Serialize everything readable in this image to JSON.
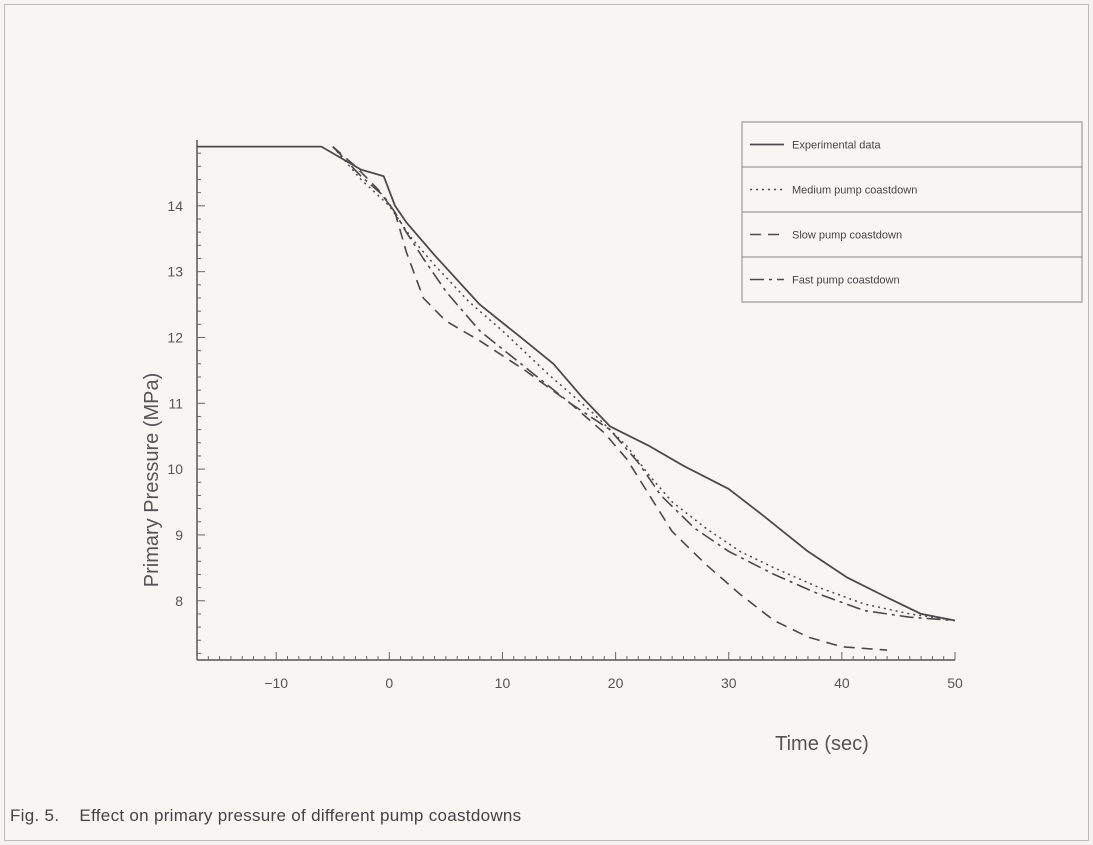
{
  "caption": "Fig. 5.    Effect on primary pressure of different pump coastdowns",
  "chart_data": {
    "type": "line",
    "xlabel": "Time (sec)",
    "ylabel": "Primary Pressure (MPa)",
    "xlim": [
      -17,
      50
    ],
    "ylim": [
      7.1,
      15.0
    ],
    "xticks": [
      -10,
      0,
      10,
      20,
      30,
      40,
      50
    ],
    "yticks": [
      8,
      9,
      10,
      11,
      12,
      13,
      14
    ],
    "legend_position": "top-right",
    "series": [
      {
        "name": "Experimental data",
        "style": "solid",
        "x": [
          -17,
          -6,
          -4.5,
          -2.5,
          -0.5,
          0.5,
          1.5,
          4,
          8,
          12,
          14.5,
          17,
          19.5,
          23,
          26,
          30,
          33,
          37,
          40.5,
          44,
          47,
          50
        ],
        "y": [
          14.9,
          14.9,
          14.75,
          14.55,
          14.45,
          14.0,
          13.75,
          13.25,
          12.5,
          11.95,
          11.6,
          11.1,
          10.65,
          10.35,
          10.05,
          9.7,
          9.3,
          8.75,
          8.35,
          8.05,
          7.8,
          7.7
        ]
      },
      {
        "name": "Medium pump coastdown",
        "style": "dotted",
        "x": [
          -5,
          -2.5,
          0,
          2,
          4,
          7,
          10,
          14,
          18,
          21,
          23,
          25,
          28,
          31,
          34,
          38,
          42,
          46,
          50
        ],
        "y": [
          14.9,
          14.4,
          14.0,
          13.5,
          13.1,
          12.55,
          12.1,
          11.45,
          10.85,
          10.35,
          9.9,
          9.5,
          9.1,
          8.75,
          8.5,
          8.2,
          7.95,
          7.8,
          7.7
        ]
      },
      {
        "name": "Slow pump coastdown",
        "style": "dashed",
        "x": [
          -5,
          -3,
          -1,
          0.5,
          1.5,
          3,
          5,
          8,
          12,
          16,
          19,
          21,
          23,
          25,
          28,
          31,
          34,
          37,
          40,
          44
        ],
        "y": [
          14.9,
          14.6,
          14.25,
          13.9,
          13.3,
          12.6,
          12.25,
          11.95,
          11.5,
          11.0,
          10.55,
          10.15,
          9.6,
          9.05,
          8.55,
          8.1,
          7.7,
          7.45,
          7.3,
          7.25
        ]
      },
      {
        "name": "Fast pump coastdown",
        "style": "dash-dot",
        "x": [
          -5,
          -2.5,
          -0.5,
          0.5,
          1.5,
          3,
          5,
          8,
          12,
          16,
          19.5,
          22,
          24,
          27,
          30,
          34,
          38,
          42,
          46,
          50
        ],
        "y": [
          14.9,
          14.45,
          14.15,
          13.9,
          13.6,
          13.2,
          12.7,
          12.1,
          11.55,
          11.0,
          10.6,
          10.1,
          9.6,
          9.1,
          8.75,
          8.4,
          8.1,
          7.85,
          7.75,
          7.7
        ]
      }
    ]
  }
}
